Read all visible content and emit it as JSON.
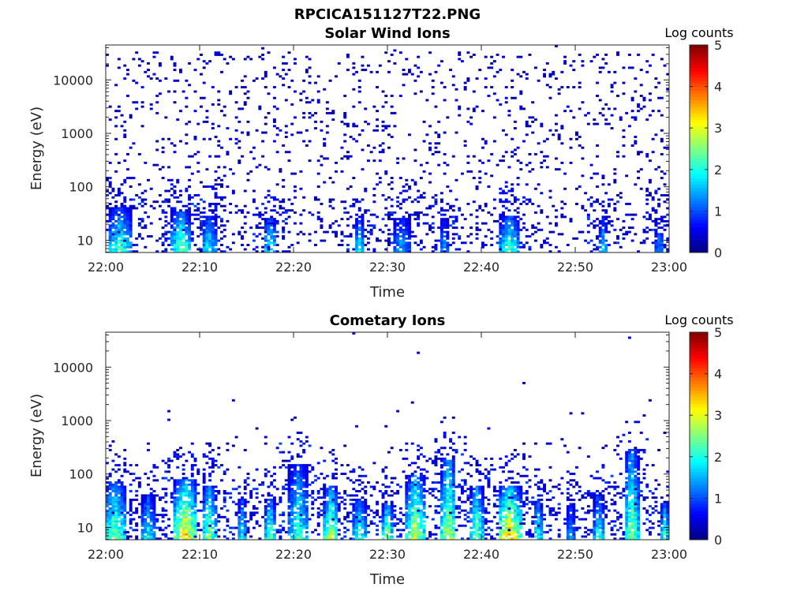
{
  "figure_title": "RPCICA151127T22.PNG",
  "chart_data": [
    {
      "type": "heatmap",
      "title": "Solar Wind Ions",
      "xlabel": "Time",
      "ylabel": "Energy (eV)",
      "x_ticks": [
        "22:00",
        "22:10",
        "22:20",
        "22:30",
        "22:40",
        "22:50",
        "23:00"
      ],
      "y_ticks": [
        "10",
        "100",
        "1000",
        "10000"
      ],
      "y_scale": "log",
      "x_range": [
        "22:00",
        "23:00"
      ],
      "y_range": [
        5.9,
        45000
      ],
      "colorbar": {
        "label": "Log counts",
        "range": [
          0,
          5
        ],
        "ticks": [
          "0",
          "1",
          "2",
          "3",
          "4",
          "5"
        ],
        "colormap": "jet"
      },
      "time_bins": 192,
      "energy_bins": 96,
      "bursts": [
        {
          "t": "22:01:30",
          "width_min": 2.5,
          "peak_log_counts": 2.3,
          "top_energy_ev": 40
        },
        {
          "t": "22:08:00",
          "width_min": 2.0,
          "peak_log_counts": 2.6,
          "top_energy_ev": 35
        },
        {
          "t": "22:11:00",
          "width_min": 1.5,
          "peak_log_counts": 2.0,
          "top_energy_ev": 30
        },
        {
          "t": "22:17:30",
          "width_min": 1.5,
          "peak_log_counts": 2.2,
          "top_energy_ev": 25
        },
        {
          "t": "22:27:00",
          "width_min": 1.0,
          "peak_log_counts": 2.0,
          "top_energy_ev": 25
        },
        {
          "t": "22:31:30",
          "width_min": 2.0,
          "peak_log_counts": 1.5,
          "top_energy_ev": 30
        },
        {
          "t": "22:36:00",
          "width_min": 1.0,
          "peak_log_counts": 1.5,
          "top_energy_ev": 25
        },
        {
          "t": "22:43:00",
          "width_min": 2.0,
          "peak_log_counts": 2.3,
          "top_energy_ev": 30
        },
        {
          "t": "22:53:00",
          "width_min": 1.0,
          "peak_log_counts": 1.8,
          "top_energy_ev": 25
        },
        {
          "t": "22:59:00",
          "width_min": 1.0,
          "peak_log_counts": 1.5,
          "top_energy_ev": 25
        }
      ],
      "background": "sparse single counts (log counts ~0-0.5) scattered from ~10 eV up to ~30000 eV"
    },
    {
      "type": "heatmap",
      "title": "Cometary Ions",
      "xlabel": "Time",
      "ylabel": "Energy (eV)",
      "x_ticks": [
        "22:00",
        "22:10",
        "22:20",
        "22:30",
        "22:40",
        "22:50",
        "23:00"
      ],
      "y_ticks": [
        "10",
        "100",
        "1000",
        "10000"
      ],
      "y_scale": "log",
      "x_range": [
        "22:00",
        "23:00"
      ],
      "y_range": [
        5.9,
        45000
      ],
      "colorbar": {
        "label": "Log counts",
        "range": [
          0,
          5
        ],
        "ticks": [
          "0",
          "1",
          "2",
          "3",
          "4",
          "5"
        ],
        "colormap": "jet"
      },
      "time_bins": 192,
      "energy_bins": 96,
      "bursts": [
        {
          "t": "22:01:00",
          "width_min": 2.5,
          "peak_log_counts": 2.6,
          "top_energy_ev": 70
        },
        {
          "t": "22:04:30",
          "width_min": 1.5,
          "peak_log_counts": 2.0,
          "top_energy_ev": 40
        },
        {
          "t": "22:08:30",
          "width_min": 2.5,
          "peak_log_counts": 3.4,
          "top_energy_ev": 80
        },
        {
          "t": "22:11:00",
          "width_min": 1.5,
          "peak_log_counts": 2.8,
          "top_energy_ev": 60
        },
        {
          "t": "22:14:30",
          "width_min": 1.0,
          "peak_log_counts": 2.0,
          "top_energy_ev": 35
        },
        {
          "t": "22:17:30",
          "width_min": 1.0,
          "peak_log_counts": 2.7,
          "top_energy_ev": 35
        },
        {
          "t": "22:20:30",
          "width_min": 2.0,
          "peak_log_counts": 2.2,
          "top_energy_ev": 150
        },
        {
          "t": "22:24:00",
          "width_min": 1.5,
          "peak_log_counts": 3.0,
          "top_energy_ev": 60
        },
        {
          "t": "22:27:00",
          "width_min": 1.5,
          "peak_log_counts": 2.2,
          "top_energy_ev": 35
        },
        {
          "t": "22:30:00",
          "width_min": 1.0,
          "peak_log_counts": 2.9,
          "top_energy_ev": 30
        },
        {
          "t": "22:33:00",
          "width_min": 2.0,
          "peak_log_counts": 3.0,
          "top_energy_ev": 100
        },
        {
          "t": "22:36:30",
          "width_min": 1.5,
          "peak_log_counts": 3.0,
          "top_energy_ev": 200
        },
        {
          "t": "22:39:30",
          "width_min": 1.5,
          "peak_log_counts": 2.6,
          "top_energy_ev": 60
        },
        {
          "t": "22:43:00",
          "width_min": 2.5,
          "peak_log_counts": 3.5,
          "top_energy_ev": 60
        },
        {
          "t": "22:46:00",
          "width_min": 1.0,
          "peak_log_counts": 2.2,
          "top_energy_ev": 35
        },
        {
          "t": "22:49:30",
          "width_min": 1.0,
          "peak_log_counts": 1.5,
          "top_energy_ev": 30
        },
        {
          "t": "22:52:30",
          "width_min": 1.0,
          "peak_log_counts": 2.2,
          "top_energy_ev": 40
        },
        {
          "t": "22:56:00",
          "width_min": 1.5,
          "peak_log_counts": 2.6,
          "top_energy_ev": 300
        },
        {
          "t": "22:59:30",
          "width_min": 1.0,
          "peak_log_counts": 2.3,
          "top_energy_ev": 30
        }
      ],
      "background": "sparse counts mostly below ~300 eV, a few isolated points up to ~20000 eV"
    }
  ]
}
